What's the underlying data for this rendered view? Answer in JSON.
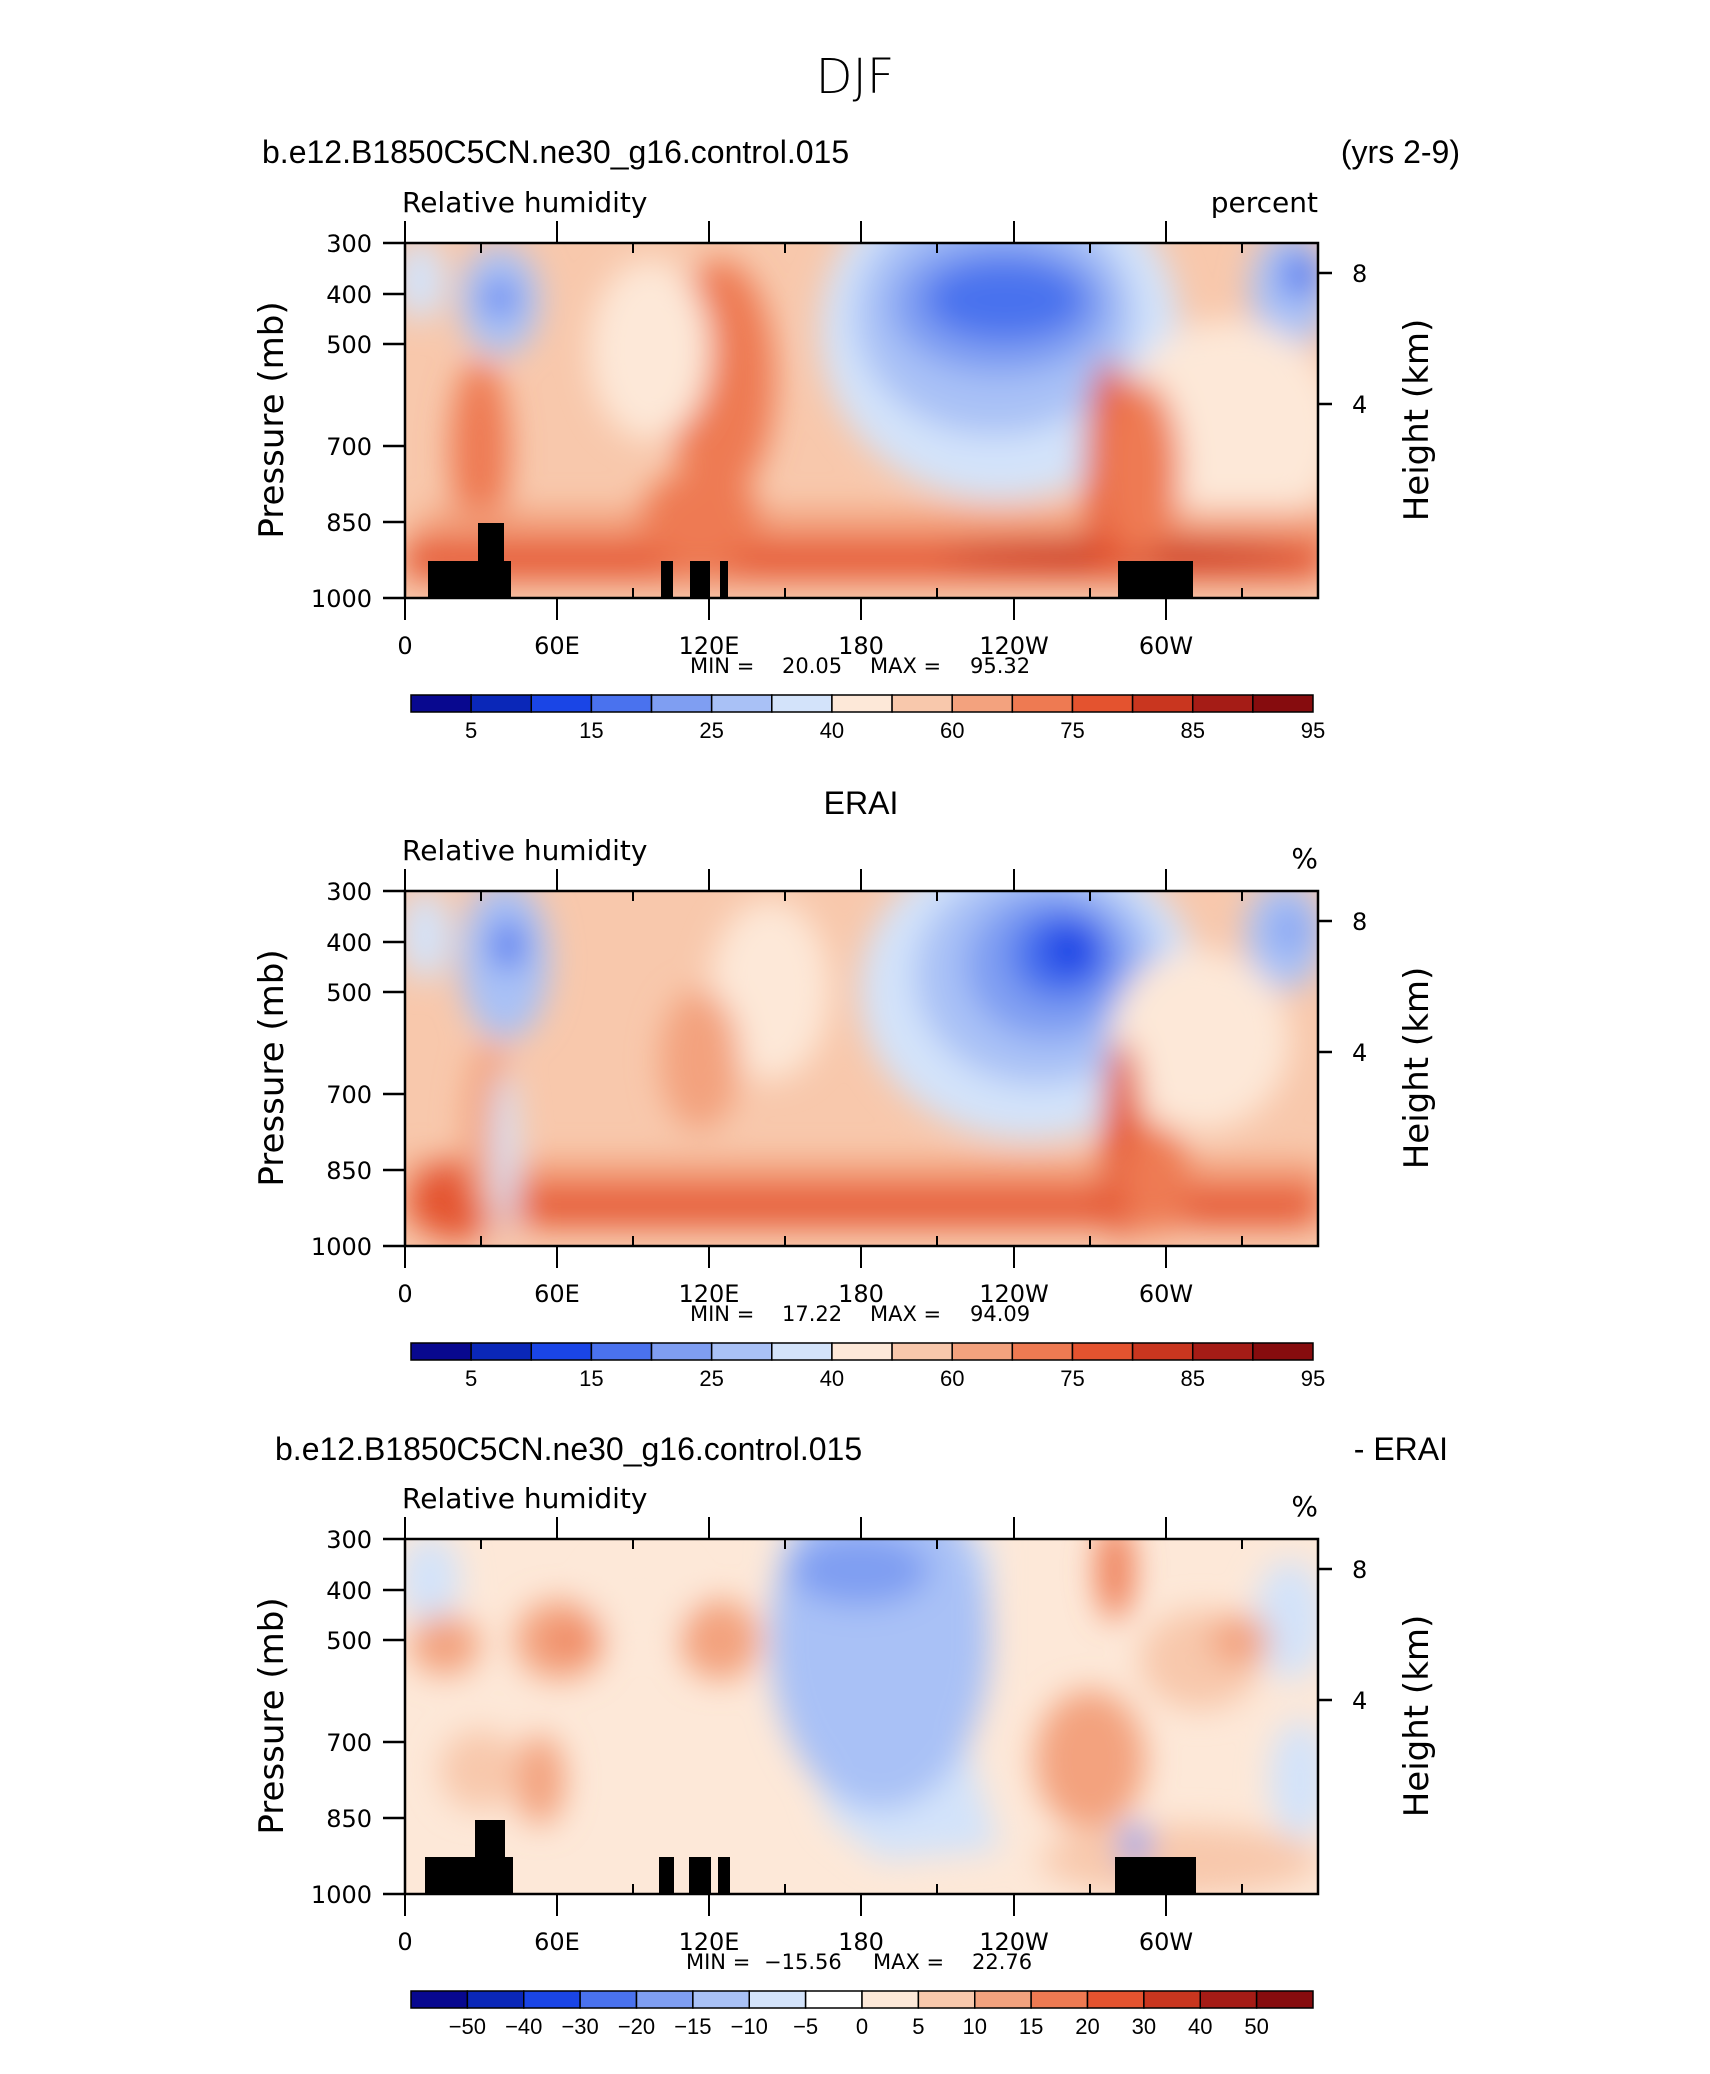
{
  "figure_title": "DJF",
  "chart_data": [
    {
      "type": "heatmap",
      "header_left": "b.e12.B1850C5CN.ne30_g16.control.015",
      "header_right": "(yrs 2-9)",
      "title": "Relative humidity",
      "units": "percent",
      "ylabel": "Pressure (mb)",
      "ylabel_right": "Height (km)",
      "x_ticks": [
        "0",
        "60E",
        "120E",
        "180",
        "120W",
        "60W"
      ],
      "y_ticks": [
        "300",
        "400",
        "500",
        "700",
        "850",
        "1000"
      ],
      "y_ticks_right": [
        "8",
        "4"
      ],
      "min_label": "MIN =",
      "min": "20.05",
      "max_label": "MAX =",
      "max": "95.32",
      "colorbar_labels": [
        "5",
        "15",
        "25",
        "40",
        "60",
        "75",
        "85",
        "95"
      ],
      "colormap": [
        "#08088f",
        "#0a27b8",
        "#1a45e6",
        "#4a72ee",
        "#7f9ef2",
        "#a9c1f6",
        "#d3e3fa",
        "#fde8d8",
        "#f8c8ac",
        "#f3a27e",
        "#ee7a52",
        "#e4532f",
        "#c9361f",
        "#a51c16",
        "#860c0e"
      ],
      "has_terrain_mask": true
    },
    {
      "type": "heatmap",
      "header_center": "ERAI",
      "title": "Relative humidity",
      "units": "%",
      "ylabel": "Pressure (mb)",
      "ylabel_right": "Height (km)",
      "x_ticks": [
        "0",
        "60E",
        "120E",
        "180",
        "120W",
        "60W"
      ],
      "y_ticks": [
        "300",
        "400",
        "500",
        "700",
        "850",
        "1000"
      ],
      "y_ticks_right": [
        "8",
        "4"
      ],
      "min_label": "MIN =",
      "min": "17.22",
      "max_label": "MAX =",
      "max": "94.09",
      "colorbar_labels": [
        "5",
        "15",
        "25",
        "40",
        "60",
        "75",
        "85",
        "95"
      ],
      "colormap": [
        "#08088f",
        "#0a27b8",
        "#1a45e6",
        "#4a72ee",
        "#7f9ef2",
        "#a9c1f6",
        "#d3e3fa",
        "#fde8d8",
        "#f8c8ac",
        "#f3a27e",
        "#ee7a52",
        "#e4532f",
        "#c9361f",
        "#a51c16",
        "#860c0e"
      ],
      "has_terrain_mask": false
    },
    {
      "type": "heatmap",
      "header_left": "b.e12.B1850C5CN.ne30_g16.control.015",
      "header_right": "- ERAI",
      "title": "Relative humidity",
      "units": "%",
      "ylabel": "Pressure (mb)",
      "ylabel_right": "Height (km)",
      "x_ticks": [
        "0",
        "60E",
        "120E",
        "180",
        "120W",
        "60W"
      ],
      "y_ticks": [
        "300",
        "400",
        "500",
        "700",
        "850",
        "1000"
      ],
      "y_ticks_right": [
        "8",
        "4"
      ],
      "min_label": "MIN =",
      "min": "−15.56",
      "max_label": "MAX =",
      "max": "22.76",
      "colorbar_labels": [
        "−50",
        "−40",
        "−30",
        "−20",
        "−15",
        "−10",
        "−5",
        "0",
        "5",
        "10",
        "15",
        "20",
        "30",
        "40",
        "50"
      ],
      "colormap": [
        "#08088f",
        "#0a27b8",
        "#1a45e6",
        "#4a72ee",
        "#7f9ef2",
        "#a9c1f6",
        "#d3e3fa",
        "#ffffff",
        "#fde8d8",
        "#f8c8ac",
        "#f3a27e",
        "#ee7a52",
        "#e4532f",
        "#c9361f",
        "#a51c16",
        "#860c0e"
      ],
      "has_terrain_mask": true
    }
  ]
}
